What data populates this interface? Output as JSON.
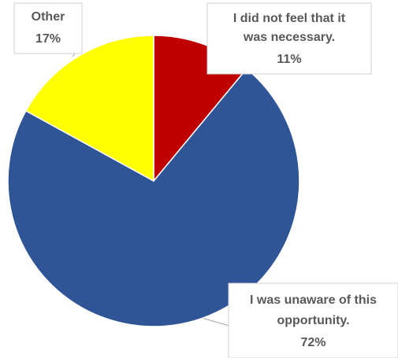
{
  "chart_data": {
    "type": "pie",
    "title": "",
    "slices": [
      {
        "label_lines": [
          "I did not feel that it",
          "was necessary."
        ],
        "value": 11,
        "value_label": "11%",
        "color": "#C00000"
      },
      {
        "label_lines": [
          "I was unaware of this",
          "opportunity."
        ],
        "value": 72,
        "value_label": "72%",
        "color": "#2F5597"
      },
      {
        "label_lines": [
          "Other"
        ],
        "value": 17,
        "value_label": "17%",
        "color": "#FFFF00"
      }
    ],
    "start_angle": "12 o'clock",
    "direction": "clockwise",
    "legend": "none",
    "label_color": "#595959",
    "slice_border_color": "#ffffff"
  }
}
